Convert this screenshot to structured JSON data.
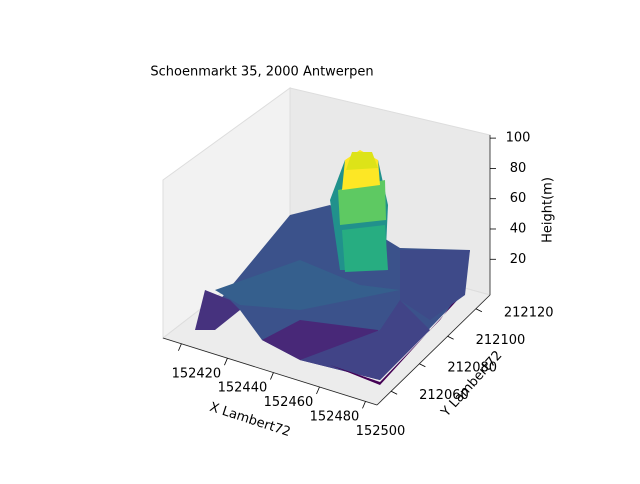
{
  "chart_data": {
    "type": "surface3d",
    "title": "Schoenmarkt 35, 2000 Antwerpen",
    "x_label": "X Lambert72",
    "y_label": "Y Lambert72",
    "z_label": "Height(m)",
    "xlim": [
      152412,
      152505
    ],
    "xticks": [
      152420,
      152440,
      152460,
      152480,
      152500
    ],
    "ylim": [
      212050,
      212130
    ],
    "yticks": [
      212060,
      212080,
      212100,
      212120
    ],
    "zlim": [
      5,
      108
    ],
    "zticks": [
      20,
      40,
      60,
      80,
      100
    ],
    "colormap": "viridis"
  }
}
